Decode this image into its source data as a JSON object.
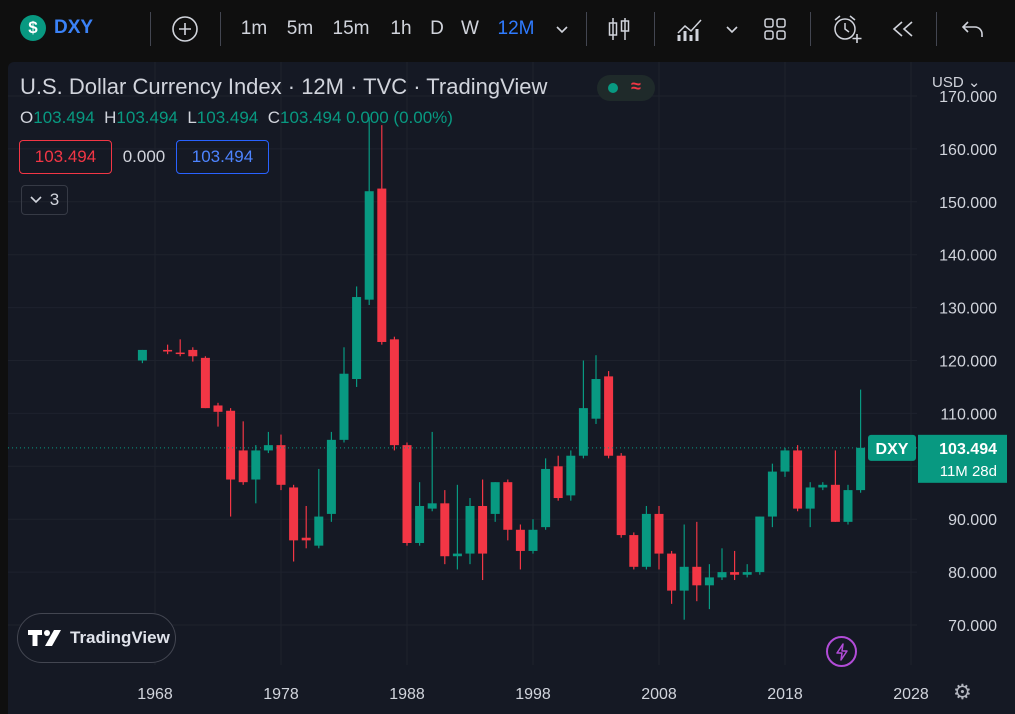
{
  "toolbar": {
    "symbol": "DXY",
    "symbol_logo": "$",
    "intervals": [
      "1m",
      "5m",
      "15m",
      "1h",
      "D",
      "W",
      "12M"
    ],
    "active_interval": "12M"
  },
  "legend": {
    "title": "U.S. Dollar Currency Index · 12M · TVC · TradingView",
    "o_label": "O",
    "o_value": "103.494",
    "h_label": "H",
    "h_value": "103.494",
    "l_label": "L",
    "l_value": "103.494",
    "c_label": "C",
    "c_value": "103.494",
    "change": "0.000 (0.00%)",
    "bid": "103.494",
    "spread": "0.000",
    "ask": "103.494",
    "indicators_count": "3"
  },
  "currency_label": "USD",
  "last_price_label": {
    "symbol": "DXY",
    "price": "103.494",
    "countdown": "11M 28d"
  },
  "branding": "TradingView",
  "colors": {
    "up": "#089981",
    "down": "#f23645",
    "accent": "#2962ff"
  },
  "chart_data": {
    "type": "candlestick",
    "y_axis": {
      "ticks": [
        "70.000",
        "80.000",
        "90.000",
        "100.000",
        "110.000",
        "120.000",
        "130.000",
        "140.000",
        "150.000",
        "160.000",
        "170.000"
      ],
      "range": [
        64,
        175
      ]
    },
    "x_axis": {
      "ticks": [
        "1968",
        "1978",
        "1988",
        "1998",
        "2008",
        "2018",
        "2028"
      ],
      "range": [
        1966.5,
        2030
      ]
    },
    "last_price": 103.494,
    "candles": [
      {
        "t": 1967,
        "o": 120,
        "h": 122,
        "l": 119.5,
        "c": 122
      },
      {
        "t": 1969,
        "o": 122,
        "h": 123,
        "l": 121.2,
        "c": 121.7
      },
      {
        "t": 1970,
        "o": 121.5,
        "h": 124,
        "l": 120.8,
        "c": 121.3
      },
      {
        "t": 1971,
        "o": 122,
        "h": 122.5,
        "l": 119.8,
        "c": 120.8
      },
      {
        "t": 1972,
        "o": 120.5,
        "h": 120.8,
        "l": 111,
        "c": 111
      },
      {
        "t": 1973,
        "o": 111.5,
        "h": 112,
        "l": 107.5,
        "c": 110.3
      },
      {
        "t": 1974,
        "o": 110.5,
        "h": 111,
        "l": 90.5,
        "c": 97.5
      },
      {
        "t": 1975,
        "o": 103,
        "h": 108.5,
        "l": 96.5,
        "c": 97
      },
      {
        "t": 1976,
        "o": 97.5,
        "h": 104,
        "l": 93,
        "c": 103
      },
      {
        "t": 1977,
        "o": 103,
        "h": 106.5,
        "l": 102.5,
        "c": 104
      },
      {
        "t": 1978,
        "o": 104,
        "h": 106,
        "l": 95.5,
        "c": 96.5
      },
      {
        "t": 1979,
        "o": 96,
        "h": 96.5,
        "l": 82,
        "c": 86
      },
      {
        "t": 1980,
        "o": 86.5,
        "h": 92.5,
        "l": 84.5,
        "c": 86
      },
      {
        "t": 1981,
        "o": 85,
        "h": 99.5,
        "l": 84.5,
        "c": 90.5
      },
      {
        "t": 1982,
        "o": 91,
        "h": 106.5,
        "l": 89.5,
        "c": 105
      },
      {
        "t": 1983,
        "o": 105,
        "h": 122.5,
        "l": 104.5,
        "c": 117.5
      },
      {
        "t": 1984,
        "o": 116.5,
        "h": 134,
        "l": 115,
        "c": 132
      },
      {
        "t": 1985,
        "o": 131.5,
        "h": 166,
        "l": 130.5,
        "c": 152
      },
      {
        "t": 1986,
        "o": 152.5,
        "h": 164.5,
        "l": 123,
        "c": 123.5
      },
      {
        "t": 1987,
        "o": 124,
        "h": 124.5,
        "l": 103,
        "c": 104
      },
      {
        "t": 1988,
        "o": 104,
        "h": 104.5,
        "l": 85,
        "c": 85.5
      },
      {
        "t": 1989,
        "o": 85.5,
        "h": 97,
        "l": 85,
        "c": 92.5
      },
      {
        "t": 1990,
        "o": 92,
        "h": 106.5,
        "l": 91.5,
        "c": 93
      },
      {
        "t": 1991,
        "o": 93,
        "h": 95.5,
        "l": 81.5,
        "c": 83
      },
      {
        "t": 1992,
        "o": 83,
        "h": 96.5,
        "l": 80.5,
        "c": 83.5
      },
      {
        "t": 1993,
        "o": 83.5,
        "h": 94,
        "l": 81.5,
        "c": 92.5
      },
      {
        "t": 1994,
        "o": 92.5,
        "h": 97.5,
        "l": 78.5,
        "c": 83.5
      },
      {
        "t": 1995,
        "o": 91,
        "h": 97,
        "l": 89.5,
        "c": 97
      },
      {
        "t": 1996,
        "o": 97,
        "h": 97.5,
        "l": 86,
        "c": 88
      },
      {
        "t": 1997,
        "o": 88,
        "h": 89,
        "l": 80.5,
        "c": 84
      },
      {
        "t": 1998,
        "o": 84,
        "h": 90,
        "l": 83.5,
        "c": 88
      },
      {
        "t": 1999,
        "o": 88.5,
        "h": 101.5,
        "l": 88,
        "c": 99.5
      },
      {
        "t": 2000,
        "o": 100,
        "h": 102,
        "l": 93.5,
        "c": 94
      },
      {
        "t": 2001,
        "o": 94.5,
        "h": 103,
        "l": 93.5,
        "c": 102
      },
      {
        "t": 2002,
        "o": 102,
        "h": 120,
        "l": 101.5,
        "c": 111
      },
      {
        "t": 2003,
        "o": 109,
        "h": 121,
        "l": 108,
        "c": 116.5
      },
      {
        "t": 2004,
        "o": 117,
        "h": 118,
        "l": 101.5,
        "c": 102
      },
      {
        "t": 2005,
        "o": 102,
        "h": 102.5,
        "l": 86.5,
        "c": 87
      },
      {
        "t": 2006,
        "o": 87,
        "h": 87.5,
        "l": 80.5,
        "c": 81
      },
      {
        "t": 2007,
        "o": 81,
        "h": 92.5,
        "l": 80.5,
        "c": 91
      },
      {
        "t": 2008,
        "o": 91,
        "h": 92.5,
        "l": 80.5,
        "c": 83.5
      },
      {
        "t": 2009,
        "o": 83.5,
        "h": 84,
        "l": 74,
        "c": 76.5
      },
      {
        "t": 2010,
        "o": 76.5,
        "h": 89,
        "l": 71,
        "c": 81
      },
      {
        "t": 2011,
        "o": 81,
        "h": 89.5,
        "l": 74.5,
        "c": 77.5
      },
      {
        "t": 2012,
        "o": 77.5,
        "h": 81.5,
        "l": 73,
        "c": 79
      },
      {
        "t": 2013,
        "o": 79,
        "h": 84.5,
        "l": 78.5,
        "c": 80
      },
      {
        "t": 2014,
        "o": 80,
        "h": 84,
        "l": 78.5,
        "c": 79.5
      },
      {
        "t": 2015,
        "o": 79.5,
        "h": 81.5,
        "l": 79,
        "c": 80
      },
      {
        "t": 2016,
        "o": 80,
        "h": 90.5,
        "l": 79.5,
        "c": 90.5
      },
      {
        "t": 2017,
        "o": 90.5,
        "h": 100.5,
        "l": 88.5,
        "c": 99
      },
      {
        "t": 2018,
        "o": 99,
        "h": 103.5,
        "l": 98,
        "c": 103
      },
      {
        "t": 2019,
        "o": 103,
        "h": 104,
        "l": 91.5,
        "c": 92
      },
      {
        "t": 2020,
        "o": 92,
        "h": 97,
        "l": 88.5,
        "c": 96
      },
      {
        "t": 2021,
        "o": 96,
        "h": 97,
        "l": 95.5,
        "c": 96.5
      },
      {
        "t": 2022,
        "o": 96.5,
        "h": 103,
        "l": 89.5,
        "c": 89.5
      },
      {
        "t": 2023,
        "o": 89.5,
        "h": 96.5,
        "l": 89,
        "c": 95.5
      },
      {
        "t": 2024,
        "o": 95.5,
        "h": 114.5,
        "l": 95,
        "c": 103.5
      }
    ]
  }
}
